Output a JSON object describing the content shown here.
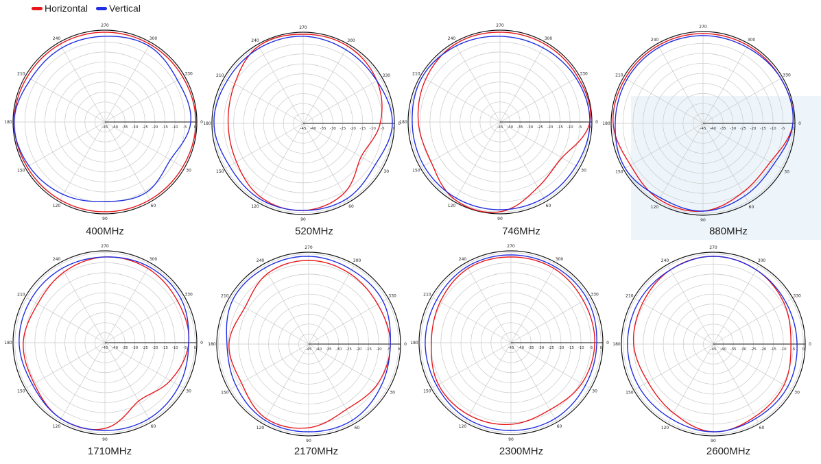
{
  "legend": {
    "horizontal": {
      "label": "Horizontal",
      "color": "#e8161b"
    },
    "vertical": {
      "label": "Vertical",
      "color": "#1f2ee0"
    }
  },
  "colors": {
    "grid": "#c8c8c8",
    "axis": "#111111",
    "horizontal": "#e8161b",
    "vertical": "#1f2ee0"
  },
  "chart_data": [
    {
      "type": "polar",
      "frequency_label": "400MHz",
      "angle_ticks": [
        "0",
        "30",
        "60",
        "90",
        "120",
        "150",
        "180",
        "210",
        "240",
        "270",
        "300",
        "330"
      ],
      "radial_ticks": [
        "-45",
        "-40",
        "-35",
        "-30",
        "-25",
        "-20",
        "-15",
        "-10",
        "-5",
        "0"
      ],
      "rlim": [
        -45,
        0
      ],
      "angles_deg": [
        0,
        30,
        60,
        90,
        120,
        150,
        180,
        210,
        240,
        270,
        300,
        330
      ],
      "series": [
        {
          "name": "Horizontal",
          "values_db": [
            -0.5,
            -1,
            -1,
            -1,
            -1,
            -1,
            -0.5,
            -1,
            -1,
            -1,
            -1,
            -1
          ]
        },
        {
          "name": "Vertical",
          "values_db": [
            -3,
            -8,
            -5,
            -6,
            -4,
            -2,
            -0.5,
            -3,
            -3,
            -3,
            -2,
            -4
          ]
        }
      ]
    },
    {
      "type": "polar",
      "frequency_label": "520MHz",
      "angle_ticks": [
        "0",
        "30",
        "60",
        "90",
        "120",
        "150",
        "180",
        "210",
        "240",
        "270",
        "300",
        "330"
      ],
      "radial_ticks": [
        "-45",
        "-40",
        "-35",
        "-30",
        "-25",
        "-20",
        "-15",
        "-10",
        "-5",
        "0"
      ],
      "rlim": [
        -45,
        0
      ],
      "angles_deg": [
        0,
        30,
        60,
        90,
        120,
        150,
        180,
        210,
        240,
        270,
        300,
        330
      ],
      "series": [
        {
          "name": "Horizontal",
          "values_db": [
            -7,
            -12,
            -5,
            -2,
            -3,
            -7,
            -8,
            -6,
            -1,
            -1,
            -1,
            -3
          ]
        },
        {
          "name": "Vertical",
          "values_db": [
            -1,
            -4,
            -2,
            -2,
            -2,
            -3,
            -1,
            -2,
            -2,
            -2,
            -3,
            -3
          ]
        }
      ]
    },
    {
      "type": "polar",
      "frequency_label": "746MHz",
      "angle_ticks": [
        "0",
        "30",
        "60",
        "90",
        "120",
        "150",
        "180",
        "210",
        "240",
        "270",
        "300",
        "330"
      ],
      "radial_ticks": [
        "-45",
        "-40",
        "-35",
        "-30",
        "-25",
        "-20",
        "-15",
        "-10",
        "-5",
        "0"
      ],
      "rlim": [
        -45,
        0
      ],
      "angles_deg": [
        0,
        30,
        60,
        90,
        120,
        150,
        180,
        210,
        240,
        270,
        300,
        330
      ],
      "series": [
        {
          "name": "Horizontal",
          "values_db": [
            -1,
            -10,
            -8,
            -1,
            -1,
            -6,
            -5,
            -3,
            -1,
            -1,
            -1,
            -1
          ]
        },
        {
          "name": "Vertical",
          "values_db": [
            -1,
            -2,
            -2,
            -2,
            -2,
            -2,
            -2,
            -1,
            -2,
            -3,
            -3,
            -2
          ]
        }
      ]
    },
    {
      "type": "polar",
      "frequency_label": "880MHz",
      "angle_ticks": [
        "0",
        "30",
        "60",
        "90",
        "120",
        "150",
        "180",
        "210",
        "240",
        "270",
        "300",
        "330"
      ],
      "radial_ticks": [
        "-45",
        "-40",
        "-35",
        "-30",
        "-25",
        "-20",
        "-15",
        "-10",
        "-5",
        "0"
      ],
      "rlim": [
        -45,
        0
      ],
      "angles_deg": [
        0,
        30,
        60,
        90,
        120,
        150,
        180,
        210,
        240,
        270,
        300,
        330
      ],
      "series": [
        {
          "name": "Horizontal",
          "values_db": [
            -1,
            -7,
            -6,
            -2,
            -2,
            -4,
            -1,
            -1,
            -1,
            -1,
            -1,
            -1
          ]
        },
        {
          "name": "Vertical",
          "values_db": [
            -1,
            -5,
            -4,
            -2,
            -3,
            -1,
            -2,
            -2,
            -2,
            -2,
            -2,
            -1
          ]
        }
      ]
    },
    {
      "type": "polar",
      "frequency_label": "1710MHz",
      "angle_ticks": [
        "0",
        "30",
        "60",
        "90",
        "120",
        "150",
        "180",
        "210",
        "240",
        "270",
        "300",
        "330"
      ],
      "radial_ticks": [
        "-45",
        "-40",
        "-35",
        "-30",
        "-25",
        "-20",
        "-15",
        "-10",
        "-5",
        "0"
      ],
      "rlim": [
        -45,
        0
      ],
      "angles_deg": [
        0,
        30,
        60,
        90,
        120,
        150,
        180,
        210,
        240,
        270,
        300,
        330
      ],
      "series": [
        {
          "name": "Horizontal",
          "values_db": [
            -4,
            -8,
            -12,
            -3,
            -2,
            -5,
            -5,
            -7,
            -5,
            -3,
            -3,
            -4
          ]
        },
        {
          "name": "Vertical",
          "values_db": [
            -4,
            -3,
            -2,
            -2,
            -2,
            -4,
            -3,
            -3,
            -3,
            -3,
            -2,
            -2
          ]
        }
      ]
    },
    {
      "type": "polar",
      "frequency_label": "2170MHz",
      "angle_ticks": [
        "0",
        "30",
        "60",
        "90",
        "120",
        "150",
        "180",
        "210",
        "240",
        "270",
        "300",
        "330"
      ],
      "radial_ticks": [
        "-45",
        "-40",
        "-35",
        "-30",
        "-25",
        "-20",
        "-15",
        "-10",
        "-5",
        "0"
      ],
      "rlim": [
        -45,
        0
      ],
      "angles_deg": [
        0,
        30,
        60,
        90,
        120,
        150,
        180,
        210,
        240,
        270,
        300,
        330
      ],
      "series": [
        {
          "name": "Horizontal",
          "values_db": [
            -5,
            -6,
            -8,
            -4,
            -3,
            -7,
            -6,
            -9,
            -5,
            -4,
            -5,
            -6
          ]
        },
        {
          "name": "Vertical",
          "values_db": [
            -5,
            -4,
            -2,
            -2,
            -2,
            -4,
            -5,
            -2,
            -2,
            -2,
            -3,
            -3
          ]
        }
      ]
    },
    {
      "type": "polar",
      "frequency_label": "2300MHz",
      "angle_ticks": [
        "0",
        "30",
        "60",
        "90",
        "120",
        "150",
        "180",
        "210",
        "240",
        "270",
        "300",
        "330"
      ],
      "radial_ticks": [
        "-45",
        "-40",
        "-35",
        "-30",
        "-25",
        "-20",
        "-15",
        "-10",
        "-5",
        "0"
      ],
      "rlim": [
        -45,
        0
      ],
      "angles_deg": [
        0,
        30,
        60,
        90,
        120,
        150,
        180,
        210,
        240,
        270,
        300,
        330
      ],
      "series": [
        {
          "name": "Horizontal",
          "values_db": [
            -4,
            -5,
            -7,
            -5,
            -4,
            -4,
            -6,
            -5,
            -3,
            -3,
            -3,
            -4
          ]
        },
        {
          "name": "Vertical",
          "values_db": [
            -3,
            -3,
            -2,
            -2,
            -2,
            -3,
            -3,
            -3,
            -2,
            -2,
            -2,
            -2
          ]
        }
      ]
    },
    {
      "type": "polar",
      "frequency_label": "2600MHz",
      "angle_ticks": [
        "0",
        "30",
        "60",
        "90",
        "120",
        "150",
        "180",
        "210",
        "240",
        "270",
        "300",
        "330"
      ],
      "radial_ticks": [
        "-45",
        "-40",
        "-35",
        "-30",
        "-25",
        "-20",
        "-15",
        "-10",
        "-5",
        "0"
      ],
      "rlim": [
        -45,
        0
      ],
      "angles_deg": [
        0,
        30,
        60,
        90,
        120,
        150,
        180,
        210,
        240,
        270,
        300,
        330
      ],
      "series": [
        {
          "name": "Horizontal",
          "values_db": [
            -7,
            -5,
            -4,
            -2,
            -6,
            -8,
            -6,
            -5,
            -3,
            -2,
            -3,
            -5
          ]
        },
        {
          "name": "Vertical",
          "values_db": [
            -4,
            -3,
            -3,
            -2,
            -3,
            -3,
            -3,
            -3,
            -3,
            -2,
            -3,
            -4
          ]
        }
      ]
    }
  ]
}
